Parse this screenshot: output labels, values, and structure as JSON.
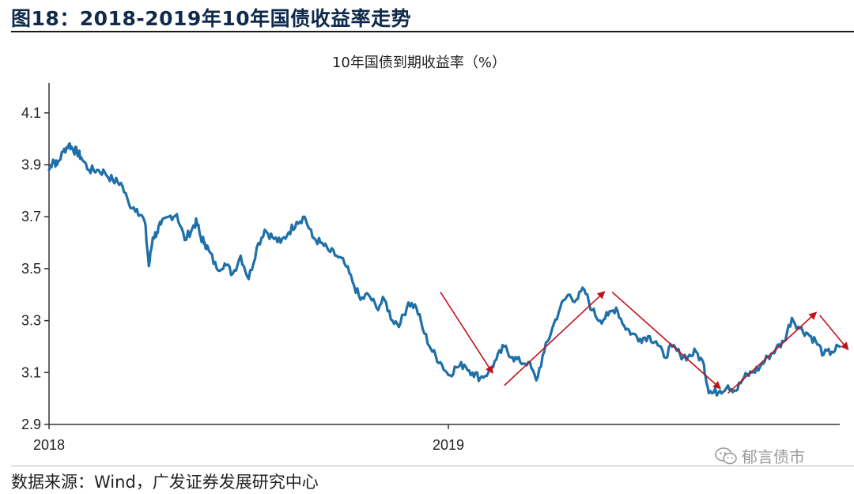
{
  "figure": {
    "title": "图18：2018-2019年10年国债收益率走势",
    "source": "数据来源：Wind，广发证券发展研究中心",
    "watermark": "郁言债市",
    "watermark_icon": "wechat-icon"
  },
  "colors": {
    "line": "#1f6fa8",
    "arrow": "#c0141c",
    "axis": "#333333",
    "title_text": "#0f2a4a"
  },
  "chart_data": {
    "type": "line",
    "title": "10年国债到期收益率（%）",
    "xlabel": "",
    "ylabel": "",
    "ylim": [
      2.9,
      4.2
    ],
    "yticks": [
      2.9,
      3.1,
      3.3,
      3.5,
      3.7,
      3.9,
      4.1
    ],
    "ytick_labels": [
      "2.9",
      "3.1",
      "3.3",
      "3.5",
      "3.7",
      "3.9",
      "4.1"
    ],
    "xlim": [
      2018.0,
      2019.98
    ],
    "xticks": [
      2018.0,
      2019.0
    ],
    "xtick_labels": [
      "2018",
      "2019"
    ],
    "grid": false,
    "series": [
      {
        "name": "10年国债到期收益率",
        "x": [
          2018.0,
          2018.01,
          2018.02,
          2018.035,
          2018.05,
          2018.06,
          2018.07,
          2018.08,
          2018.1,
          2018.12,
          2018.14,
          2018.16,
          2018.18,
          2018.2,
          2018.22,
          2018.24,
          2018.25,
          2018.26,
          2018.27,
          2018.28,
          2018.3,
          2018.32,
          2018.34,
          2018.36,
          2018.37,
          2018.38,
          2018.39,
          2018.4,
          2018.42,
          2018.44,
          2018.46,
          2018.48,
          2018.5,
          2018.52,
          2018.54,
          2018.56,
          2018.58,
          2018.6,
          2018.62,
          2018.64,
          2018.66,
          2018.68,
          2018.7,
          2018.72,
          2018.74,
          2018.76,
          2018.78,
          2018.8,
          2018.82,
          2018.84,
          2018.86,
          2018.88,
          2018.9,
          2018.92,
          2018.94,
          2018.96,
          2018.98,
          2019.0,
          2019.02,
          2019.04,
          2019.06,
          2019.08,
          2019.1,
          2019.12,
          2019.14,
          2019.16,
          2019.18,
          2019.2,
          2019.22,
          2019.24,
          2019.26,
          2019.28,
          2019.3,
          2019.32,
          2019.34,
          2019.36,
          2019.38,
          2019.4,
          2019.42,
          2019.44,
          2019.46,
          2019.48,
          2019.5,
          2019.52,
          2019.54,
          2019.56,
          2019.58,
          2019.6,
          2019.62,
          2019.64,
          2019.65,
          2019.66,
          2019.68,
          2019.7,
          2019.72,
          2019.74,
          2019.76,
          2019.78,
          2019.8,
          2019.82,
          2019.84,
          2019.86,
          2019.88,
          2019.9,
          2019.92,
          2019.94,
          2019.96,
          2019.98
        ],
        "values": [
          3.88,
          3.92,
          3.9,
          3.95,
          3.98,
          3.96,
          3.95,
          3.93,
          3.88,
          3.88,
          3.87,
          3.84,
          3.83,
          3.75,
          3.73,
          3.68,
          3.51,
          3.62,
          3.64,
          3.67,
          3.7,
          3.71,
          3.61,
          3.66,
          3.68,
          3.62,
          3.6,
          3.57,
          3.5,
          3.52,
          3.48,
          3.55,
          3.46,
          3.58,
          3.65,
          3.62,
          3.6,
          3.64,
          3.68,
          3.7,
          3.62,
          3.6,
          3.57,
          3.55,
          3.52,
          3.45,
          3.38,
          3.4,
          3.35,
          3.38,
          3.3,
          3.29,
          3.37,
          3.35,
          3.25,
          3.18,
          3.14,
          3.09,
          3.12,
          3.13,
          3.1,
          3.08,
          3.1,
          3.15,
          3.2,
          3.16,
          3.14,
          3.14,
          3.07,
          3.18,
          3.27,
          3.35,
          3.4,
          3.38,
          3.42,
          3.34,
          3.3,
          3.32,
          3.35,
          3.28,
          3.25,
          3.23,
          3.24,
          3.22,
          3.16,
          3.2,
          3.17,
          3.16,
          3.18,
          3.13,
          3.04,
          3.02,
          3.03,
          3.05,
          3.03,
          3.08,
          3.1,
          3.12,
          3.16,
          3.19,
          3.22,
          3.31,
          3.27,
          3.25,
          3.22,
          3.17,
          3.18,
          3.2
        ]
      }
    ],
    "annotations": [
      {
        "type": "arrow",
        "from": [
          2018.98,
          3.41
        ],
        "to": [
          2019.11,
          3.1
        ]
      },
      {
        "type": "arrow",
        "from": [
          2019.14,
          3.05
        ],
        "to": [
          2019.39,
          3.41
        ]
      },
      {
        "type": "arrow",
        "from": [
          2019.41,
          3.41
        ],
        "to": [
          2019.68,
          3.04
        ]
      },
      {
        "type": "arrow",
        "from": [
          2019.7,
          3.02
        ],
        "to": [
          2019.92,
          3.33
        ]
      },
      {
        "type": "arrow",
        "from": [
          2019.93,
          3.32
        ],
        "to": [
          2020.0,
          3.19
        ]
      }
    ]
  }
}
